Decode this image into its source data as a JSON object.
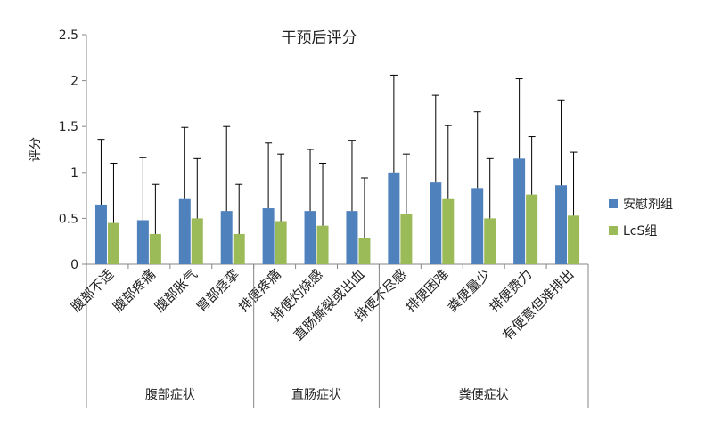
{
  "chart_data": {
    "type": "bar",
    "title": "干预后评分",
    "ylabel": "评分",
    "ylim": [
      0,
      2.5
    ],
    "yticks": [
      0,
      0.5,
      1,
      1.5,
      2,
      2.5
    ],
    "ytick_labels": [
      "0",
      "0.5",
      "1",
      "1.5",
      "2",
      "2.5"
    ],
    "categories": [
      "腹部不适",
      "腹部疼痛",
      "腹部胀气",
      "胃部痉挛",
      "排便疼痛",
      "排便灼烧感",
      "直肠撕裂或出血",
      "排便不尽感",
      "排便困难",
      "粪便量少",
      "排便费力",
      "有便意但难排出"
    ],
    "groups": [
      {
        "label": "腹部症状",
        "start": 0,
        "end": 3
      },
      {
        "label": "直肠症状",
        "start": 4,
        "end": 6
      },
      {
        "label": "粪便症状",
        "start": 7,
        "end": 11
      }
    ],
    "series": [
      {
        "name": "安慰剂组",
        "color": "#4F81BD",
        "values": [
          0.65,
          0.48,
          0.71,
          0.58,
          0.61,
          0.58,
          0.58,
          1.0,
          0.89,
          0.83,
          1.15,
          0.86
        ],
        "error_upper": [
          1.36,
          1.16,
          1.49,
          1.5,
          1.32,
          1.25,
          1.35,
          2.06,
          1.84,
          1.66,
          2.02,
          1.79
        ]
      },
      {
        "name": "LcS组",
        "color": "#9BBB59",
        "values": [
          0.45,
          0.33,
          0.5,
          0.33,
          0.47,
          0.42,
          0.29,
          0.55,
          0.71,
          0.5,
          0.76,
          0.53
        ],
        "error_upper": [
          1.1,
          0.87,
          1.15,
          0.87,
          1.2,
          1.1,
          0.94,
          1.2,
          1.51,
          1.15,
          1.39,
          1.22
        ]
      }
    ],
    "grid": false,
    "legend_position": "right"
  }
}
